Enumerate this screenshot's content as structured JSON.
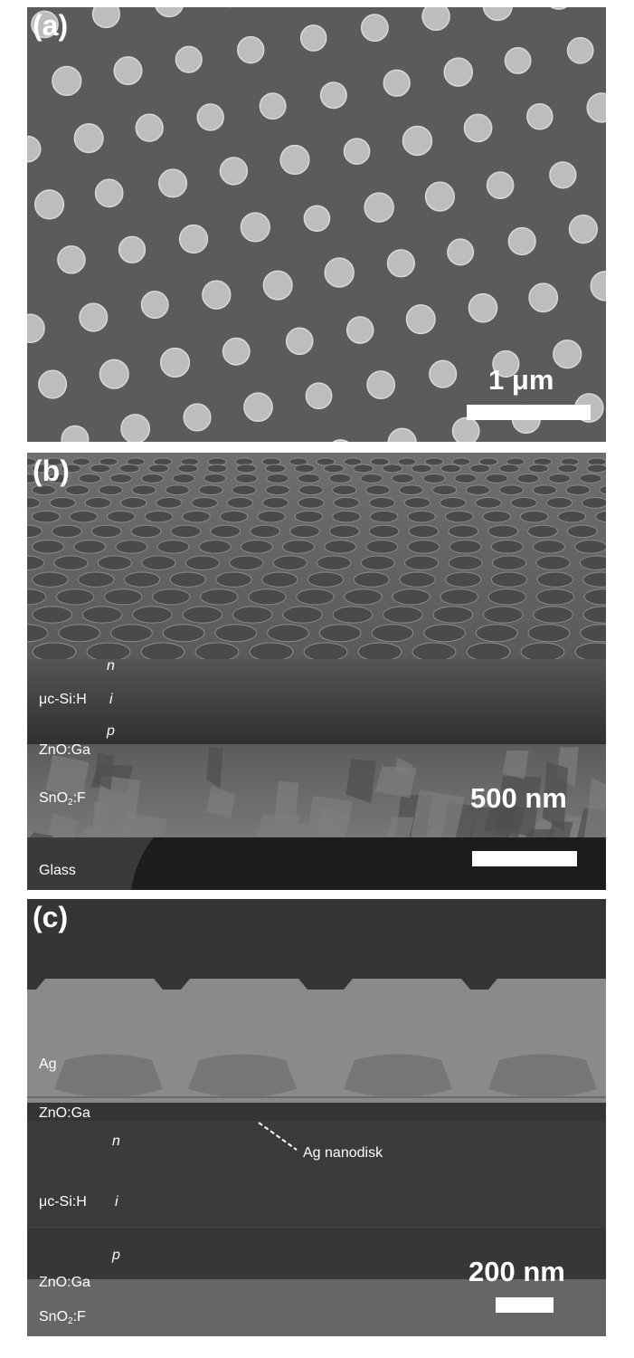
{
  "panels": {
    "a": {
      "label": "(a)",
      "scale_bar": "1 μm"
    },
    "b": {
      "label": "(b)",
      "scale_bar": "500 nm",
      "layers": {
        "n": "n",
        "material": "μc-Si:H",
        "i": "i",
        "p": "p",
        "zno": "ZnO:Ga",
        "sno2_main": "SnO",
        "sno2_sub": "2",
        "sno2_end": ":F",
        "glass": "Glass"
      }
    },
    "c": {
      "label": "(c)",
      "scale_bar": "200 nm",
      "annotation": "Ag nanodisk",
      "layers": {
        "ag": "Ag",
        "zno_top": "ZnO:Ga",
        "n": "n",
        "material": "μc-Si:H",
        "i": "i",
        "p": "p",
        "zno_bottom": "ZnO:Ga",
        "sno2_main": "SnO",
        "sno2_sub": "2",
        "sno2_end": ":F"
      }
    }
  },
  "colors": {
    "background_a": "#5a5a5a",
    "disk": "#bdbdbd",
    "text": "#ffffff"
  }
}
